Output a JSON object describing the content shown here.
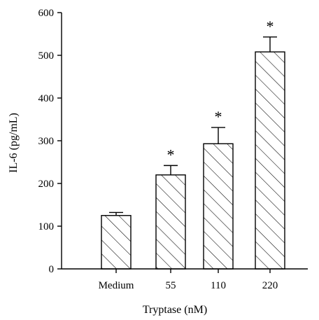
{
  "chart_data": {
    "type": "bar",
    "title": "",
    "xlabel": "Tryptase (nM)",
    "ylabel": "IL-6 (pg/mL)",
    "categories": [
      "Medium",
      "55",
      "110",
      "220"
    ],
    "values": [
      125,
      220,
      293,
      508
    ],
    "errors": [
      7,
      22,
      38,
      35
    ],
    "significance": [
      "",
      "*",
      "*",
      "*"
    ],
    "ylim": [
      0,
      600
    ],
    "yticks": [
      0,
      100,
      200,
      300,
      400,
      500,
      600
    ],
    "grid": false,
    "legend": "none",
    "bar_fill": "hatched",
    "colors": {
      "bar_stroke": "#000000",
      "axis": "#000000",
      "background": "#ffffff"
    }
  }
}
